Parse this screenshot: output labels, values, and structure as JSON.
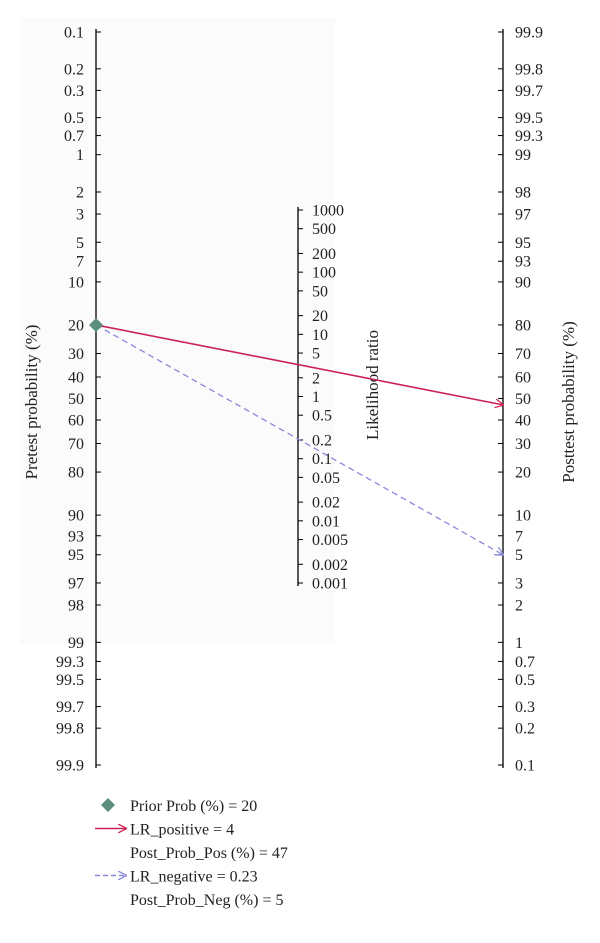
{
  "chart_data": {
    "type": "line",
    "subtype": "fagan-nomogram",
    "left_axis": {
      "label": "Pretest probability (%)",
      "ticks": [
        "0.1",
        "0.2",
        "0.3",
        "0.5",
        "0.7",
        "1",
        "2",
        "3",
        "5",
        "7",
        "10",
        "20",
        "30",
        "40",
        "50",
        "60",
        "70",
        "80",
        "90",
        "93",
        "95",
        "97",
        "98",
        "99",
        "99.3",
        "99.5",
        "99.7",
        "99.8",
        "99.9"
      ]
    },
    "middle_axis": {
      "label": "Likelihood ratio",
      "ticks": [
        "1000",
        "500",
        "200",
        "100",
        "50",
        "20",
        "10",
        "5",
        "2",
        "1",
        "0.5",
        "0.2",
        "0.1",
        "0.05",
        "0.02",
        "0.01",
        "0.005",
        "0.002",
        "0.001"
      ]
    },
    "right_axis": {
      "label": "Posttest probability (%)",
      "ticks": [
        "99.9",
        "99.8",
        "99.7",
        "99.5",
        "99.3",
        "99",
        "98",
        "97",
        "95",
        "93",
        "90",
        "80",
        "70",
        "60",
        "50",
        "40",
        "30",
        "20",
        "10",
        "7",
        "5",
        "3",
        "2",
        "1",
        "0.7",
        "0.5",
        "0.3",
        "0.2",
        "0.1"
      ]
    },
    "prior_prob": 20,
    "lr_positive": 4,
    "post_prob_pos": 47,
    "lr_negative": 0.23,
    "post_prob_neg": 5,
    "series": [
      {
        "name": "LR_positive = 4",
        "from": 20,
        "to": 47,
        "color": "#cc2255",
        "dashed": false
      },
      {
        "name": "LR_negative = 0.23",
        "from": 20,
        "to": 5,
        "color": "#8888dd",
        "dashed": true
      }
    ],
    "prior_marker_color": "#5b8f7b",
    "legend": [
      {
        "marker": "diamond",
        "text": "Prior Prob (%) = 20"
      },
      {
        "marker": "arrow-solid",
        "text": "LR_positive = 4"
      },
      {
        "marker": "none",
        "text": "Post_Prob_Pos (%) = 47"
      },
      {
        "marker": "arrow-dashed",
        "text": "LR_negative = 0.23"
      },
      {
        "marker": "none",
        "text": "Post_Prob_Neg (%) = 5"
      }
    ]
  }
}
